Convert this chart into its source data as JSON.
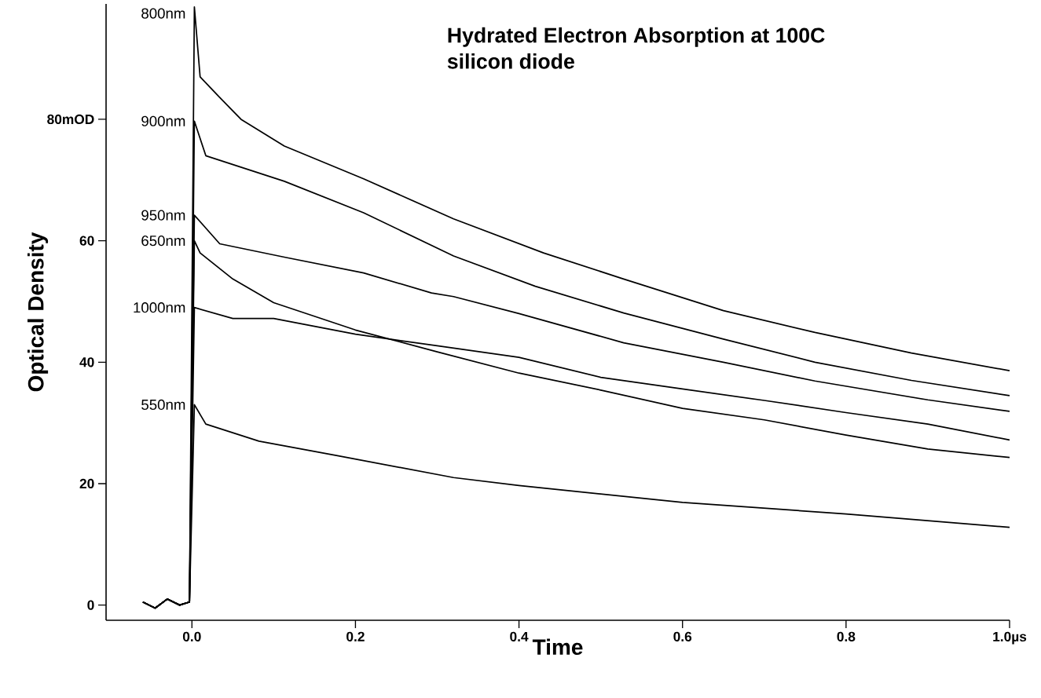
{
  "chart_data": {
    "type": "line",
    "title": "Hydrated Electron Absorption at 100C",
    "subtitle": "silicon diode",
    "xlabel": "Time",
    "ylabel": "Optical Density",
    "xlim": [
      -0.105,
      1.0
    ],
    "ylim": [
      -2.5,
      99
    ],
    "xticks": [
      {
        "value": 0,
        "label": "0.0"
      },
      {
        "value": 0.2,
        "label": "0.2"
      },
      {
        "value": 0.4,
        "label": "0.4"
      },
      {
        "value": 0.6,
        "label": "0.6"
      },
      {
        "value": 0.8,
        "label": "0.8"
      },
      {
        "value": 1.0,
        "label": "1.0µs"
      }
    ],
    "yticks": [
      0,
      20,
      40,
      60,
      {
        "value": 80,
        "label": "80mOD"
      }
    ],
    "grid": false,
    "marker": "none",
    "line_style": "solid",
    "series": [
      {
        "name": "800nm",
        "color": "#000000",
        "x": [
          -0.06,
          -0.045,
          -0.03,
          -0.015,
          -0.003,
          0.003,
          0.01,
          0.034,
          0.06,
          0.113,
          0.21,
          0.32,
          0.43,
          0.528,
          0.65,
          0.762,
          0.88,
          1.0
        ],
        "values": [
          0.5,
          -0.5,
          1,
          0,
          0.5,
          98.5,
          87,
          83.6,
          80,
          75.6,
          70.2,
          63.6,
          58,
          53.7,
          48.5,
          44.9,
          41.5,
          38.6
        ]
      },
      {
        "name": "900nm",
        "color": "#000000",
        "x": [
          -0.06,
          -0.045,
          -0.03,
          -0.015,
          -0.003,
          0.003,
          0.017,
          0.113,
          0.21,
          0.32,
          0.42,
          0.528,
          0.65,
          0.762,
          0.88,
          1.0
        ],
        "values": [
          0.5,
          -0.5,
          1,
          0,
          0.5,
          79.7,
          74,
          69.8,
          64.6,
          57.5,
          52.5,
          48.1,
          43.8,
          40,
          37,
          34.5
        ]
      },
      {
        "name": "950nm",
        "color": "#000000",
        "x": [
          -0.06,
          -0.045,
          -0.03,
          -0.015,
          -0.003,
          0.003,
          0.034,
          0.113,
          0.21,
          0.293,
          0.32,
          0.4,
          0.528,
          0.65,
          0.762,
          0.9,
          1.0
        ],
        "values": [
          0.5,
          -0.5,
          1,
          0,
          0.5,
          64.2,
          59.5,
          57.3,
          54.7,
          51.4,
          50.8,
          48,
          43.2,
          40,
          36.9,
          33.8,
          31.9
        ]
      },
      {
        "name": "650nm",
        "color": "#000000",
        "x": [
          -0.06,
          -0.045,
          -0.03,
          -0.015,
          -0.003,
          0.003,
          0.01,
          0.05,
          0.1,
          0.2,
          0.3,
          0.4,
          0.5,
          0.6,
          0.7,
          0.8,
          0.9,
          1.0
        ],
        "values": [
          0.5,
          -0.5,
          1,
          0,
          0.5,
          60,
          58,
          53.7,
          49.8,
          45.3,
          41.7,
          38.2,
          35.4,
          32.4,
          30.5,
          28,
          25.7,
          24.3
        ]
      },
      {
        "name": "1000nm",
        "color": "#000000",
        "x": [
          -0.06,
          -0.045,
          -0.03,
          -0.015,
          -0.003,
          0.003,
          0.05,
          0.1,
          0.2,
          0.3,
          0.4,
          0.5,
          0.6,
          0.7,
          0.8,
          0.9,
          1.0
        ],
        "values": [
          0.5,
          -0.5,
          1,
          0,
          0.5,
          49,
          47.2,
          47.2,
          44.6,
          42.7,
          40.8,
          37.5,
          35.6,
          33.7,
          31.7,
          29.8,
          27.2
        ]
      },
      {
        "name": "550nm",
        "color": "#000000",
        "x": [
          -0.06,
          -0.045,
          -0.03,
          -0.015,
          -0.003,
          0.003,
          0.017,
          0.082,
          0.178,
          0.32,
          0.4,
          0.6,
          0.8,
          1.0
        ],
        "values": [
          0.5,
          -0.5,
          1,
          0,
          0.5,
          33,
          29.8,
          27,
          24.6,
          21,
          19.7,
          16.9,
          15,
          12.8
        ]
      }
    ]
  }
}
